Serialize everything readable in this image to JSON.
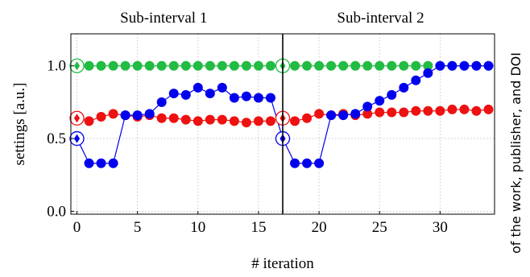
{
  "chart_data": {
    "type": "line",
    "xlabel": "# iteration",
    "ylabel": "settings [a.u.]",
    "xlim": [
      -0.5,
      34.5
    ],
    "ylim": [
      -0.02,
      1.22
    ],
    "x_ticks": [
      0,
      5,
      10,
      15,
      20,
      25,
      30
    ],
    "y_ticks": [
      0.0,
      0.5,
      1.0
    ],
    "y_tick_labels": [
      "0.0",
      "0.5",
      "1.0"
    ],
    "grid": true,
    "subintervals": [
      {
        "label": "Sub-interval 1",
        "start": 0,
        "end": 17
      },
      {
        "label": "Sub-interval 2",
        "start": 17,
        "end": 34.5
      }
    ],
    "divider_x": 17,
    "side_text": "of the work, publisher, and DOI",
    "colors": {
      "green": "#22bb44",
      "red": "#ee1111",
      "blue": "#0000ee"
    },
    "series": [
      {
        "color": "#22bb44",
        "x": [
          0,
          1,
          2,
          3,
          4,
          5,
          6,
          7,
          8,
          9,
          10,
          11,
          12,
          13,
          14,
          15,
          16,
          17,
          18,
          19,
          20,
          21,
          22,
          23,
          24,
          25,
          26,
          27,
          28,
          29
        ],
        "values": [
          1.0,
          1.0,
          1.0,
          1.0,
          1.0,
          1.0,
          1.0,
          1.0,
          1.0,
          1.0,
          1.0,
          1.0,
          1.0,
          1.0,
          1.0,
          1.0,
          1.0,
          1.0,
          1.0,
          1.0,
          1.0,
          1.0,
          1.0,
          1.0,
          1.0,
          1.0,
          1.0,
          1.0,
          1.0,
          1.0
        ]
      },
      {
        "color": "#ee1111",
        "x": [
          0,
          1,
          2,
          3,
          4,
          5,
          6,
          7,
          8,
          9,
          10,
          11,
          12,
          13,
          14,
          15,
          16,
          17,
          18,
          19,
          20,
          21,
          22,
          23,
          24,
          25,
          26,
          27,
          28,
          29,
          30,
          31,
          32,
          33,
          34
        ],
        "values": [
          0.64,
          0.62,
          0.65,
          0.67,
          0.66,
          0.65,
          0.66,
          0.64,
          0.64,
          0.63,
          0.62,
          0.63,
          0.63,
          0.62,
          0.61,
          0.62,
          0.62,
          0.64,
          0.62,
          0.64,
          0.67,
          0.66,
          0.67,
          0.66,
          0.67,
          0.68,
          0.68,
          0.68,
          0.69,
          0.69,
          0.69,
          0.7,
          0.7,
          0.69,
          0.7
        ]
      },
      {
        "color": "#0000ee",
        "x": [
          0,
          1,
          2,
          3,
          4,
          5,
          6,
          7,
          8,
          9,
          10,
          11,
          12,
          13,
          14,
          15,
          16,
          17,
          18,
          19,
          20,
          21,
          22,
          23,
          24,
          25,
          26,
          27,
          28,
          29,
          30,
          31,
          32,
          33,
          34
        ],
        "values": [
          0.5,
          0.33,
          0.33,
          0.33,
          0.66,
          0.66,
          0.67,
          0.75,
          0.81,
          0.8,
          0.85,
          0.81,
          0.85,
          0.78,
          0.79,
          0.78,
          0.78,
          0.5,
          0.33,
          0.33,
          0.33,
          0.66,
          0.66,
          0.67,
          0.72,
          0.76,
          0.8,
          0.85,
          0.9,
          0.95,
          1.0,
          1.0,
          1.0,
          1.0,
          1.0
        ]
      }
    ],
    "highlighted_points": [
      {
        "x": 0,
        "y": 1.0,
        "color": "#22bb44"
      },
      {
        "x": 0,
        "y": 0.64,
        "color": "#ee1111"
      },
      {
        "x": 0,
        "y": 0.5,
        "color": "#0000ee"
      },
      {
        "x": 17,
        "y": 1.0,
        "color": "#22bb44"
      },
      {
        "x": 17,
        "y": 0.64,
        "color": "#ee1111"
      },
      {
        "x": 17,
        "y": 0.5,
        "color": "#0000ee"
      }
    ]
  }
}
